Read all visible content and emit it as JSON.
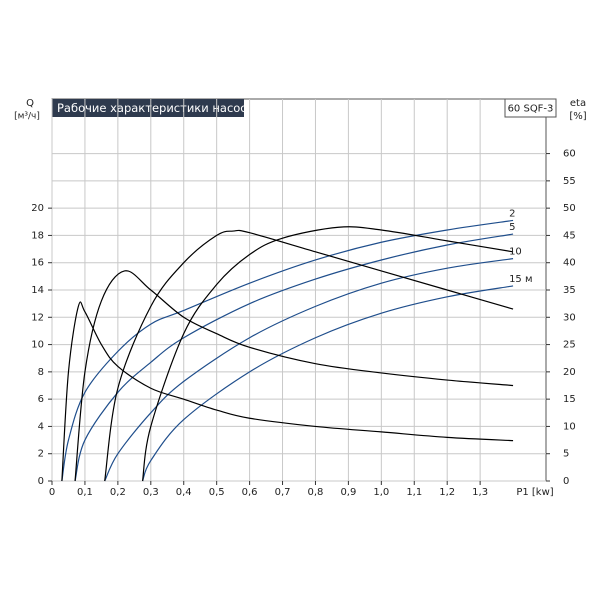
{
  "chart_data": {
    "type": "line",
    "title": "Рабочие характеристики насоса",
    "model": "60 SQF-3",
    "y_label": "Q",
    "y_unit": "[м³/ч]",
    "y2_label": "eta",
    "y2_unit": "[%]",
    "x_label": "P1 [kw]",
    "xlim": [
      0,
      1.5
    ],
    "xticks": [
      0,
      {
        "value": 0.1,
        "label": "0,1"
      },
      {
        "value": 0.2,
        "label": "0,2"
      },
      {
        "value": 0.3,
        "label": "0,3"
      },
      {
        "value": 0.4,
        "label": "0,4"
      },
      {
        "value": 0.5,
        "label": "0,5"
      },
      {
        "value": 0.6,
        "label": "0,6"
      },
      {
        "value": 0.7,
        "label": "0,7"
      },
      {
        "value": 0.8,
        "label": "0,8"
      },
      {
        "value": 0.9,
        "label": "0,9"
      },
      {
        "value": 1.0,
        "label": "1,0"
      },
      {
        "value": 1.1,
        "label": "1,1"
      },
      {
        "value": 1.2,
        "label": "1,2"
      },
      {
        "value": 1.3,
        "label": "1,3"
      }
    ],
    "ylim": [
      0,
      28
    ],
    "yticks": [
      0,
      2,
      4,
      6,
      8,
      10,
      12,
      14,
      16,
      18,
      20
    ],
    "y2lim": [
      0,
      70
    ],
    "y2ticks": [
      0,
      5,
      10,
      15,
      20,
      25,
      30,
      35,
      40,
      45,
      50,
      55,
      60
    ],
    "grid": true,
    "series": [
      {
        "name": "2",
        "color": "#1f4e8c",
        "x": [
          0.03,
          0.05,
          0.1,
          0.2,
          0.3,
          0.4,
          0.6,
          0.8,
          1.0,
          1.2,
          1.4
        ],
        "values": [
          0,
          3,
          6.5,
          9.5,
          11.5,
          12.5,
          14.5,
          16.2,
          17.5,
          18.4,
          19.1
        ]
      },
      {
        "name": "5",
        "color": "#1f4e8c",
        "x": [
          0.07,
          0.1,
          0.2,
          0.3,
          0.4,
          0.6,
          0.8,
          1.0,
          1.2,
          1.4
        ],
        "values": [
          0,
          3,
          6.5,
          8.7,
          10.5,
          13,
          14.8,
          16.2,
          17.3,
          18.1
        ]
      },
      {
        "name": "10",
        "color": "#1f4e8c",
        "x": [
          0.16,
          0.2,
          0.3,
          0.4,
          0.6,
          0.8,
          1.0,
          1.2,
          1.4
        ],
        "values": [
          0,
          2,
          5,
          7.3,
          10.5,
          12.8,
          14.5,
          15.6,
          16.3
        ]
      },
      {
        "name": "15 м",
        "color": "#1f4e8c",
        "x": [
          0.275,
          0.3,
          0.4,
          0.6,
          0.8,
          1.0,
          1.2,
          1.4
        ],
        "values": [
          0,
          1.5,
          4.5,
          8,
          10.5,
          12.3,
          13.5,
          14.3
        ]
      },
      {
        "axis": "y2",
        "color": "#000000",
        "x": [
          0.03,
          0.05,
          0.08,
          0.1,
          0.15,
          0.2,
          0.3,
          0.4,
          0.5,
          0.6,
          0.8,
          1.0,
          1.2,
          1.4
        ],
        "values": [
          0,
          20,
          32,
          31,
          25,
          21,
          17,
          15,
          13,
          11.5,
          10,
          9,
          8,
          7.4
        ]
      },
      {
        "axis": "y2",
        "color": "#000000",
        "x": [
          0.07,
          0.1,
          0.15,
          0.22,
          0.3,
          0.4,
          0.5,
          0.6,
          0.8,
          1.0,
          1.2,
          1.4
        ],
        "values": [
          0,
          20,
          33,
          38.5,
          35,
          30,
          27,
          24.5,
          21.5,
          19.8,
          18.5,
          17.5
        ]
      },
      {
        "axis": "y2",
        "color": "#000000",
        "x": [
          0.16,
          0.2,
          0.3,
          0.4,
          0.5,
          0.55,
          0.6,
          0.8,
          1.0,
          1.2,
          1.4
        ],
        "values": [
          0,
          17,
          32,
          40,
          45,
          45.8,
          45.5,
          42,
          38.5,
          35,
          31.5
        ]
      },
      {
        "axis": "y2",
        "color": "#000000",
        "x": [
          0.275,
          0.3,
          0.4,
          0.5,
          0.6,
          0.7,
          0.87,
          1.0,
          1.2,
          1.4
        ],
        "values": [
          0,
          10,
          27,
          36,
          41.5,
          44.5,
          46.5,
          46,
          44,
          42
        ]
      }
    ]
  }
}
